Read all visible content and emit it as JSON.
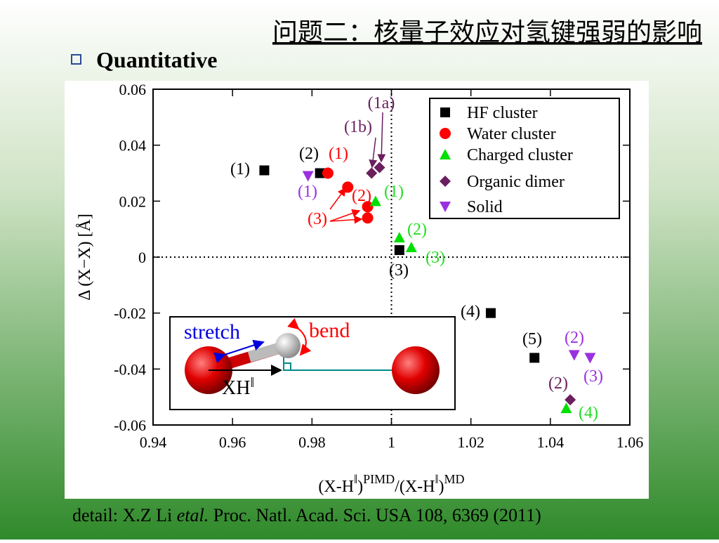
{
  "slide": {
    "title": "问题二：核量子效应对氢键强弱的影响",
    "bullet": "Quantitative",
    "citation": [
      "detail: X.Z Li ",
      "etal.",
      " Proc. Natl. Acad. Sci. USA 108, 6369 (2011)"
    ]
  },
  "chart_data": {
    "type": "scatter",
    "ylabel": "Δ (X−X) [Å]",
    "xlabel": [
      "(X-H",
      "‖",
      ")",
      "PIMD",
      "/(X-H",
      "‖",
      ")",
      "MD"
    ],
    "xlim": [
      0.94,
      1.06
    ],
    "xticks": [
      0.94,
      0.96,
      0.98,
      1,
      1.02,
      1.04,
      1.06
    ],
    "ylim": [
      -0.06,
      0.06
    ],
    "yticks": [
      0.06,
      0.04,
      0.02,
      0,
      -0.02,
      -0.04,
      -0.06
    ],
    "vlines": [
      1
    ],
    "hlines": [
      0
    ],
    "legend": "upper right",
    "series": [
      {
        "name": "HF cluster",
        "color": "#000000",
        "marker": "square",
        "x": [
          0.968,
          0.982,
          1.002,
          1.025,
          1.036
        ],
        "values": [
          0.031,
          0.03,
          0.0025,
          -0.02,
          -0.036
        ]
      },
      {
        "name": "Water cluster",
        "color": "#ff0000",
        "marker": "circle",
        "x": [
          0.984,
          0.989,
          0.994,
          0.994
        ],
        "values": [
          0.03,
          0.025,
          0.018,
          0.014
        ]
      },
      {
        "name": "Charged cluster",
        "color": "#00e000",
        "marker": "triangle-up",
        "x": [
          0.996,
          1.002,
          1.005,
          1.044
        ],
        "values": [
          0.02,
          0.007,
          0.0035,
          -0.054
        ]
      },
      {
        "name": "Organic dimer",
        "color": "#6a1f5e",
        "marker": "diamond",
        "x": [
          0.995,
          0.997,
          1.045
        ],
        "values": [
          0.03,
          0.032,
          -0.051
        ]
      },
      {
        "name": "Solid",
        "color": "#9b30e0",
        "marker": "triangle-down",
        "x": [
          0.979,
          1.046,
          1.05
        ],
        "values": [
          0.029,
          -0.035,
          -0.036
        ]
      }
    ],
    "annotations": [
      {
        "text": "(1)",
        "color": "#000000"
      },
      {
        "text": "(2)",
        "color": "#000000"
      },
      {
        "text": "(3)",
        "color": "#000000"
      },
      {
        "text": "(4)",
        "color": "#000000"
      },
      {
        "text": "(5)",
        "color": "#000000"
      },
      {
        "text": "(1)",
        "color": "#ff0000"
      },
      {
        "text": "(2)",
        "color": "#ff0000"
      },
      {
        "text": "(3)",
        "color": "#ff0000"
      },
      {
        "text": "(1)",
        "color": "#22dd22"
      },
      {
        "text": "(2)",
        "color": "#22dd22"
      },
      {
        "text": "(3)",
        "color": "#22dd22"
      },
      {
        "text": "(4)",
        "color": "#22dd22"
      },
      {
        "text": "(1a)",
        "color": "#6a1f5e"
      },
      {
        "text": "(1b)",
        "color": "#6a1f5e"
      },
      {
        "text": "(2)",
        "color": "#6a1f5e"
      },
      {
        "text": "(1)",
        "color": "#9b30e0"
      },
      {
        "text": "(2)",
        "color": "#9b30e0"
      },
      {
        "text": "(3)",
        "color": "#9b30e0"
      }
    ],
    "inset": {
      "stretch": "stretch",
      "bend": "bend",
      "xh": "XH",
      "xh_mark": "‖"
    }
  }
}
